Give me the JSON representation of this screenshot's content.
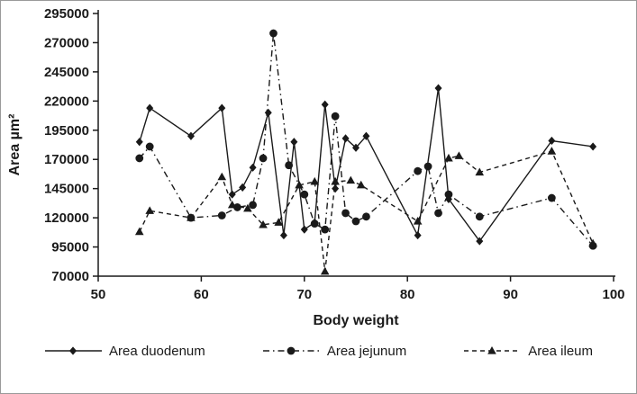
{
  "chart_data": {
    "type": "line",
    "title": "",
    "xlabel": "Body weight",
    "ylabel": "Area µm²",
    "xlim": [
      50,
      100
    ],
    "ylim": [
      70000,
      295000
    ],
    "xticks": [
      50,
      60,
      70,
      80,
      90,
      100
    ],
    "yticks": [
      70000,
      95000,
      120000,
      145000,
      170000,
      195000,
      220000,
      245000,
      270000,
      295000
    ],
    "grid": false,
    "legend_position": "bottom",
    "series": [
      {
        "name": "Area duodenum",
        "marker": "diamond",
        "line": "solid",
        "x": [
          54,
          55,
          59,
          62,
          63,
          64,
          65,
          66.5,
          68,
          69,
          70,
          71,
          72,
          73,
          74,
          75,
          76,
          81,
          83,
          84,
          87,
          94,
          98
        ],
        "y": [
          185000,
          214000,
          190000,
          214000,
          140000,
          146000,
          163000,
          210000,
          105000,
          185000,
          110000,
          116000,
          217000,
          145000,
          188000,
          180000,
          190000,
          105000,
          231000,
          136000,
          100000,
          186000,
          181000
        ]
      },
      {
        "name": "Area jejunum",
        "marker": "circle",
        "line": "dashdot",
        "x": [
          54,
          55,
          59,
          62,
          63.5,
          65,
          66,
          67,
          68.5,
          70,
          71,
          72,
          73,
          74,
          75,
          76,
          81,
          82,
          83,
          84,
          87,
          94,
          98
        ],
        "y": [
          171000,
          181000,
          120000,
          122000,
          129000,
          131000,
          171000,
          278000,
          165000,
          140000,
          115000,
          110000,
          207000,
          124000,
          117000,
          121000,
          160000,
          164000,
          124000,
          140000,
          121000,
          137000,
          96000
        ]
      },
      {
        "name": "Area ileum",
        "marker": "triangle",
        "line": "dashed",
        "x": [
          54,
          55,
          59,
          62,
          63,
          64.5,
          66,
          67.5,
          69.5,
          71,
          72,
          73,
          74.5,
          75.5,
          81,
          84,
          85,
          87,
          94,
          98
        ],
        "y": [
          108000,
          126000,
          120000,
          155000,
          131000,
          128000,
          114000,
          116000,
          148000,
          151000,
          74000,
          151000,
          152000,
          148000,
          117000,
          171000,
          173000,
          159000,
          177000,
          98000
        ]
      }
    ]
  },
  "colors": {
    "ink": "#1a1a1a",
    "background": "#ffffff"
  }
}
